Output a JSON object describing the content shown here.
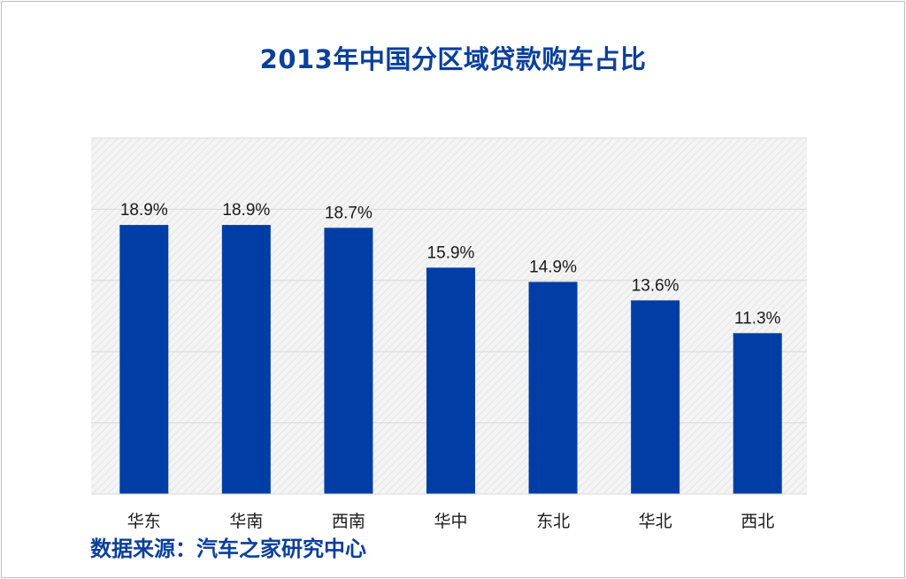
{
  "title": "2013年中国分区域贷款购车占比",
  "source": "数据来源：汽车之家研究中心",
  "colors": {
    "bar": "#003ea6",
    "title": "#0a3f9c",
    "grid": "#d9d9d9"
  },
  "chart_data": {
    "type": "bar",
    "title": "2013年中国分区域贷款购车占比",
    "xlabel": "",
    "ylabel": "",
    "categories": [
      "华东",
      "华南",
      "西南",
      "华中",
      "东北",
      "华北",
      "西北"
    ],
    "values": [
      18.9,
      18.9,
      18.7,
      15.9,
      14.9,
      13.6,
      11.3
    ],
    "data_labels": [
      "18.9%",
      "18.9%",
      "18.7%",
      "15.9%",
      "14.9%",
      "13.6%",
      "11.3%"
    ],
    "unit": "%",
    "ylim": [
      0,
      25
    ],
    "grid": true,
    "legend": "none"
  }
}
